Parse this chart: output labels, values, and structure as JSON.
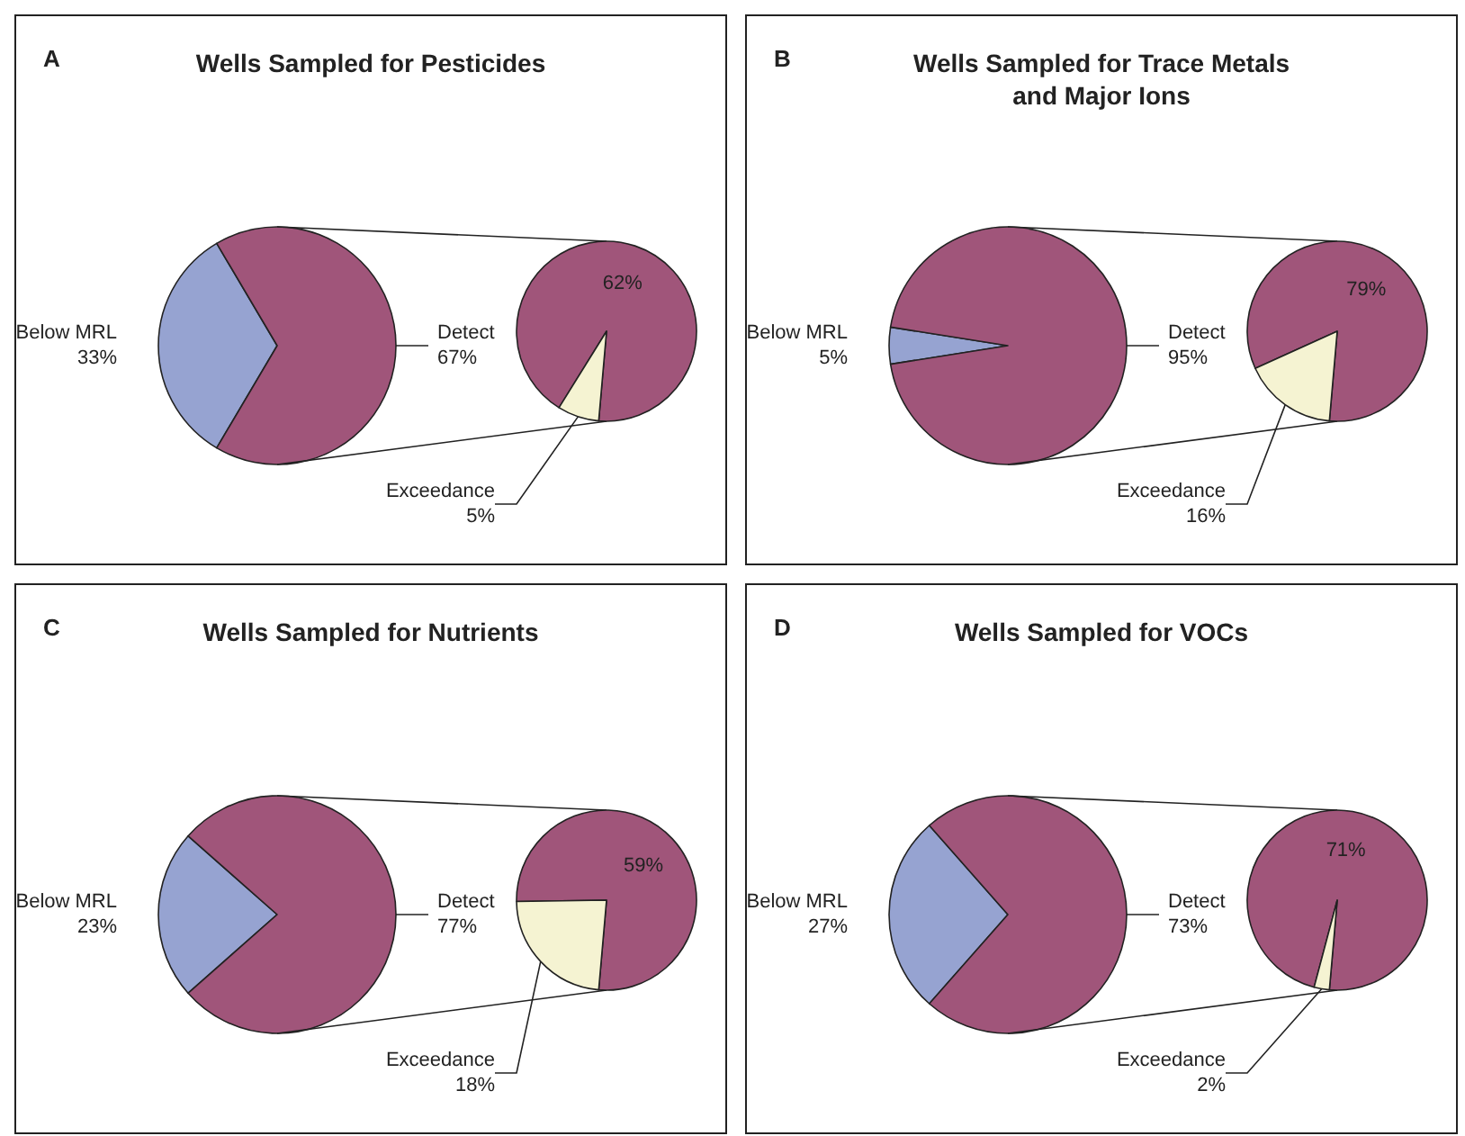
{
  "chart_data": [
    {
      "type": "pie",
      "title": "Wells Sampled for Pesticides",
      "annotations": [
        "A"
      ],
      "categories": [
        "Below MRL",
        "Detect"
      ],
      "values": [
        33,
        67
      ],
      "value_labels": [
        "33%",
        "67%"
      ],
      "colors": [
        "#96a3d1",
        "#a0557a"
      ]
    },
    {
      "type": "pie",
      "categories": [
        null,
        "Exceedance"
      ],
      "values": [
        62,
        5
      ],
      "value_labels": [
        "62%",
        "5%"
      ],
      "colors": [
        "#a0557a",
        "#f5f3d2"
      ]
    },
    {
      "type": "pie",
      "title": "Wells Sampled for Trace Metals\nand Major Ions",
      "annotations": [
        "B"
      ],
      "categories": [
        "Below MRL",
        "Detect"
      ],
      "values": [
        5,
        95
      ],
      "value_labels": [
        "5%",
        "95%"
      ],
      "colors": [
        "#96a3d1",
        "#a0557a"
      ]
    },
    {
      "type": "pie",
      "categories": [
        null,
        "Exceedance"
      ],
      "values": [
        79,
        16
      ],
      "value_labels": [
        "79%",
        "16%"
      ],
      "colors": [
        "#a0557a",
        "#f5f3d2"
      ]
    },
    {
      "type": "pie",
      "title": "Wells Sampled for Nutrients",
      "annotations": [
        "C"
      ],
      "categories": [
        "Below MRL",
        "Detect"
      ],
      "values": [
        23,
        77
      ],
      "value_labels": [
        "23%",
        "77%"
      ],
      "colors": [
        "#96a3d1",
        "#a0557a"
      ]
    },
    {
      "type": "pie",
      "categories": [
        null,
        "Exceedance"
      ],
      "values": [
        59,
        18
      ],
      "value_labels": [
        "59%",
        "18%"
      ],
      "colors": [
        "#a0557a",
        "#f5f3d2"
      ]
    },
    {
      "type": "pie",
      "title": "Wells Sampled for VOCs",
      "annotations": [
        "D"
      ],
      "categories": [
        "Below MRL",
        "Detect"
      ],
      "values": [
        27,
        73
      ],
      "value_labels": [
        "27%",
        "73%"
      ],
      "colors": [
        "#96a3d1",
        "#a0557a"
      ]
    },
    {
      "type": "pie",
      "categories": [
        null,
        "Exceedance"
      ],
      "values": [
        71,
        2
      ],
      "value_labels": [
        "71%",
        "2%"
      ],
      "colors": [
        "#a0557a",
        "#f5f3d2"
      ]
    }
  ]
}
